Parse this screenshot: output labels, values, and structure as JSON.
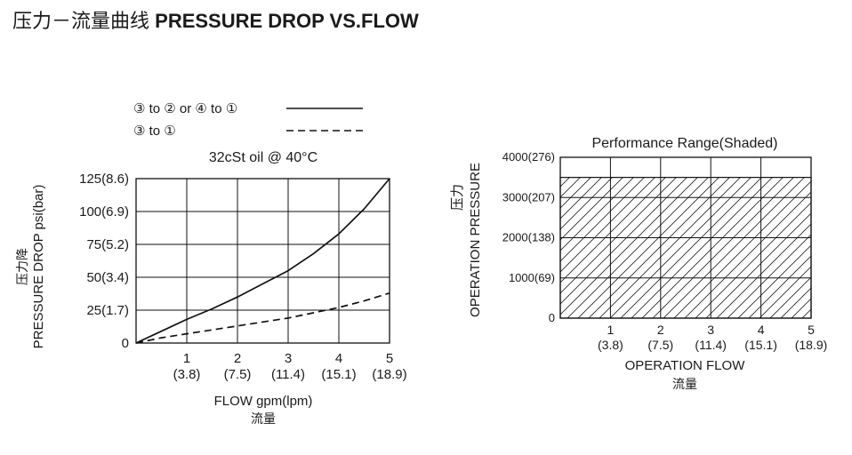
{
  "page": {
    "title_cn": "压力－流量曲线",
    "title_en": "PRESSURE DROP VS.FLOW"
  },
  "chart_data": [
    {
      "type": "line",
      "title": "32cSt oil @ 40°C",
      "legend": [
        {
          "label": "③ to ② or ④ to ①",
          "style": "solid"
        },
        {
          "label": "③ to ①",
          "style": "dashed"
        }
      ],
      "legend_placement": "top",
      "xlabel": "FLOW gpm(lpm)",
      "xlabel_cn": "流量",
      "ylabel": "PRESSURE DROP psi(bar)",
      "ylabel_cn": "压力降",
      "xlim": [
        0,
        5
      ],
      "ylim": [
        0,
        125
      ],
      "x_ticks": [
        {
          "main": "1",
          "sub": "(3.8)"
        },
        {
          "main": "2",
          "sub": "(7.5)"
        },
        {
          "main": "3",
          "sub": "(11.4)"
        },
        {
          "main": "4",
          "sub": "(15.1)"
        },
        {
          "main": "5",
          "sub": "(18.9)"
        }
      ],
      "y_ticks": [
        "0",
        "25(1.7)",
        "50(3.4)",
        "75(5.2)",
        "100(6.9)",
        "125(8.6)"
      ],
      "grid": true,
      "series": [
        {
          "line_style": "solid",
          "x": [
            0,
            0.5,
            1,
            1.5,
            2,
            2.5,
            3,
            3.5,
            4,
            4.5,
            5
          ],
          "y": [
            0,
            9,
            18,
            26,
            35,
            45,
            55,
            68,
            83,
            102,
            125
          ]
        },
        {
          "line_style": "dashed",
          "x": [
            0,
            0.5,
            1,
            1.5,
            2,
            2.5,
            3,
            3.5,
            4,
            4.5,
            5
          ],
          "y": [
            0,
            4,
            7,
            10,
            13,
            16,
            19,
            23,
            27,
            32,
            38
          ]
        }
      ]
    },
    {
      "type": "area",
      "title": "Performance Range(Shaded)",
      "xlabel": "OPERATION FLOW",
      "xlabel_cn": "流量",
      "ylabel": "OPERATION PRESSURE",
      "ylabel_cn": "压力",
      "xlim": [
        0,
        5
      ],
      "ylim": [
        0,
        4000
      ],
      "x_ticks": [
        {
          "main": "1",
          "sub": "(3.8)"
        },
        {
          "main": "2",
          "sub": "(7.5)"
        },
        {
          "main": "3",
          "sub": "(11.4)"
        },
        {
          "main": "4",
          "sub": "(15.1)"
        },
        {
          "main": "5",
          "sub": "(18.9)"
        }
      ],
      "y_ticks": [
        "0",
        "1000(69)",
        "2000(138)",
        "3000(207)",
        "4000(276)"
      ],
      "grid": true,
      "shaded_region": {
        "x": [
          0,
          5
        ],
        "y": [
          0,
          3500
        ]
      }
    }
  ]
}
